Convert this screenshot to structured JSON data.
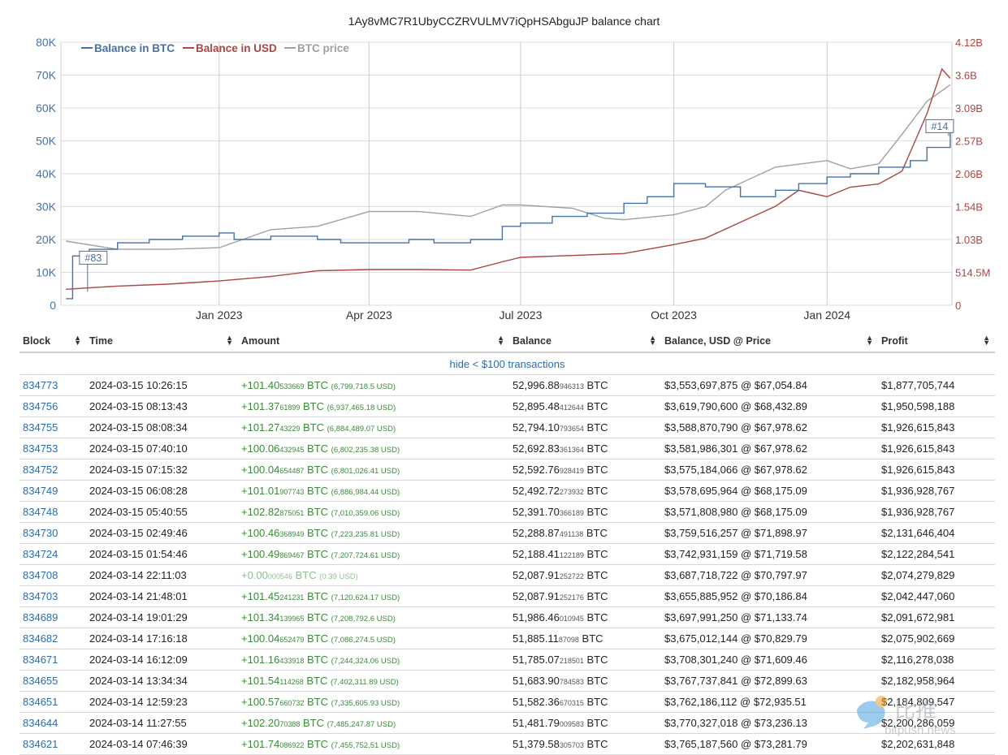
{
  "chart_data": {
    "type": "line",
    "title": "1Ay8vMC7R1UbyCCZRVULMV7iQpHSAbguJP balance chart",
    "x_ticks": [
      "Jan 2023",
      "Apr 2023",
      "Jul 2023",
      "Oct 2023",
      "Jan 2024"
    ],
    "y_left_ticks": [
      "0",
      "10K",
      "20K",
      "30K",
      "40K",
      "50K",
      "60K",
      "70K",
      "80K"
    ],
    "y_right_ticks": [
      "0",
      "514.5M",
      "1.03B",
      "1.54B",
      "2.06B",
      "2.57B",
      "3.09B",
      "3.6B",
      "4.12B"
    ],
    "ylim_left": [
      0,
      80000
    ],
    "ylim_right": [
      0,
      4120000000
    ],
    "legend_position": "top-left",
    "grid": true,
    "colors": {
      "btc": "#4572a7",
      "usd": "#aa4643",
      "price": "#a0a0a0"
    },
    "annotations": [
      {
        "label": "#83",
        "date": "2022-10-14",
        "y": 12000
      },
      {
        "label": "#14",
        "date": "2024-03-14",
        "y": 52000
      }
    ],
    "series": [
      {
        "name": "Balance in BTC",
        "axis": "left",
        "x": [
          "2022-10-01",
          "2022-10-05",
          "2022-10-15",
          "2022-11-01",
          "2022-11-20",
          "2022-12-10",
          "2023-01-01",
          "2023-01-10",
          "2023-02-01",
          "2023-03-01",
          "2023-03-15",
          "2023-04-01",
          "2023-04-25",
          "2023-05-10",
          "2023-06-01",
          "2023-06-20",
          "2023-07-01",
          "2023-07-20",
          "2023-08-10",
          "2023-09-01",
          "2023-09-15",
          "2023-10-01",
          "2023-10-20",
          "2023-11-10",
          "2023-12-01",
          "2023-12-15",
          "2024-01-01",
          "2024-01-15",
          "2024-02-01",
          "2024-02-20",
          "2024-03-01",
          "2024-03-15"
        ],
        "y": [
          2000,
          15000,
          17000,
          19000,
          20000,
          21000,
          22000,
          20000,
          21000,
          20000,
          19000,
          19000,
          20000,
          19000,
          20000,
          24000,
          25000,
          27000,
          28000,
          31000,
          33000,
          37000,
          36000,
          33000,
          35000,
          37000,
          39000,
          40000,
          42000,
          44000,
          48000,
          52997
        ]
      },
      {
        "name": "Balance in USD",
        "axis": "right",
        "x": [
          "2022-10-01",
          "2022-11-01",
          "2022-12-01",
          "2023-01-01",
          "2023-02-01",
          "2023-03-01",
          "2023-04-01",
          "2023-05-01",
          "2023-06-01",
          "2023-06-20",
          "2023-07-01",
          "2023-08-01",
          "2023-09-01",
          "2023-10-01",
          "2023-10-20",
          "2023-11-10",
          "2023-12-01",
          "2023-12-15",
          "2024-01-01",
          "2024-01-15",
          "2024-02-01",
          "2024-02-15",
          "2024-03-01",
          "2024-03-10",
          "2024-03-15"
        ],
        "y": [
          250000000,
          300000000,
          330000000,
          380000000,
          450000000,
          540000000,
          560000000,
          560000000,
          550000000,
          680000000,
          750000000,
          780000000,
          810000000,
          950000000,
          1050000000,
          1300000000,
          1550000000,
          1800000000,
          1700000000,
          1850000000,
          1900000000,
          2100000000,
          3000000000,
          3700000000,
          3553697875
        ]
      },
      {
        "name": "BTC price",
        "axis": "left",
        "x": [
          "2022-10-01",
          "2022-11-01",
          "2022-12-01",
          "2023-01-01",
          "2023-02-01",
          "2023-03-01",
          "2023-04-01",
          "2023-05-01",
          "2023-06-01",
          "2023-06-20",
          "2023-07-01",
          "2023-08-01",
          "2023-08-20",
          "2023-09-01",
          "2023-10-01",
          "2023-10-20",
          "2023-11-01",
          "2023-12-01",
          "2024-01-01",
          "2024-01-15",
          "2024-02-01",
          "2024-02-15",
          "2024-03-01",
          "2024-03-15"
        ],
        "y": [
          19500,
          17000,
          17000,
          17500,
          23000,
          24000,
          28500,
          28500,
          27000,
          30500,
          30500,
          29500,
          26500,
          26000,
          27500,
          30000,
          35000,
          42000,
          44000,
          41500,
          43000,
          52000,
          62000,
          67055
        ]
      }
    ]
  },
  "table": {
    "headers": [
      "Block",
      "Time",
      "Amount",
      "Balance",
      "Balance, USD @ Price",
      "Profit"
    ],
    "hide_link": "hide < $100 transactions",
    "unit": "BTC",
    "rows": [
      {
        "block": "834773",
        "time": "2024-03-15 10:26:15",
        "amt_main": "+101.40",
        "amt_small": "533669",
        "amt_usd": "(6,799,718.5 USD)",
        "bal_main": "52,996.88",
        "bal_small": "946313",
        "bal_usd": "$3,553,697,875 @ $67,054.84",
        "profit": "$1,877,705,744"
      },
      {
        "block": "834756",
        "time": "2024-03-15 08:13:43",
        "amt_main": "+101.37",
        "amt_small": "61899",
        "amt_usd": "(6,937,465.18 USD)",
        "bal_main": "52,895.48",
        "bal_small": "412644",
        "bal_usd": "$3,619,790,600 @ $68,432.89",
        "profit": "$1,950,598,188"
      },
      {
        "block": "834755",
        "time": "2024-03-15 08:08:34",
        "amt_main": "+101.27",
        "amt_small": "43229",
        "amt_usd": "(6,884,489.07 USD)",
        "bal_main": "52,794.10",
        "bal_small": "793654",
        "bal_usd": "$3,588,870,790 @ $67,978.62",
        "profit": "$1,926,615,843"
      },
      {
        "block": "834753",
        "time": "2024-03-15 07:40:10",
        "amt_main": "+100.06",
        "amt_small": "432945",
        "amt_usd": "(6,802,235.38 USD)",
        "bal_main": "52,692.83",
        "bal_small": "361364",
        "bal_usd": "$3,581,986,301 @ $67,978.62",
        "profit": "$1,926,615,843"
      },
      {
        "block": "834752",
        "time": "2024-03-15 07:15:32",
        "amt_main": "+100.04",
        "amt_small": "654487",
        "amt_usd": "(6,801,026.41 USD)",
        "bal_main": "52,592.76",
        "bal_small": "928419",
        "bal_usd": "$3,575,184,066 @ $67,978.62",
        "profit": "$1,926,615,843"
      },
      {
        "block": "834749",
        "time": "2024-03-15 06:08:28",
        "amt_main": "+101.01",
        "amt_small": "907743",
        "amt_usd": "(6,886,984.44 USD)",
        "bal_main": "52,492.72",
        "bal_small": "273932",
        "bal_usd": "$3,578,695,964 @ $68,175.09",
        "profit": "$1,936,928,767"
      },
      {
        "block": "834748",
        "time": "2024-03-15 05:40:55",
        "amt_main": "+102.82",
        "amt_small": "875051",
        "amt_usd": "(7,010,359.06 USD)",
        "bal_main": "52,391.70",
        "bal_small": "366189",
        "bal_usd": "$3,571,808,980 @ $68,175.09",
        "profit": "$1,936,928,767"
      },
      {
        "block": "834730",
        "time": "2024-03-15 02:49:46",
        "amt_main": "+100.46",
        "amt_small": "368949",
        "amt_usd": "(7,223,235.81 USD)",
        "bal_main": "52,288.87",
        "bal_small": "491138",
        "bal_usd": "$3,759,516,257 @ $71,898.97",
        "profit": "$2,131,646,404"
      },
      {
        "block": "834724",
        "time": "2024-03-15 01:54:46",
        "amt_main": "+100.49",
        "amt_small": "869467",
        "amt_usd": "(7,207,724.61 USD)",
        "bal_main": "52,188.41",
        "bal_small": "122189",
        "bal_usd": "$3,742,931,159 @ $71,719.58",
        "profit": "$2,122,284,541"
      },
      {
        "block": "834708",
        "time": "2024-03-14 22:11:03",
        "amt_main": "+0.00",
        "amt_small": "000546",
        "amt_usd": "(0.39 USD)",
        "bal_main": "52,087.91",
        "bal_small": "252722",
        "bal_usd": "$3,687,718,722 @ $70,797.97",
        "profit": "$2,074,279,829",
        "zero": true
      },
      {
        "block": "834703",
        "time": "2024-03-14 21:48:01",
        "amt_main": "+101.45",
        "amt_small": "241231",
        "amt_usd": "(7,120,624.17 USD)",
        "bal_main": "52,087.91",
        "bal_small": "252176",
        "bal_usd": "$3,655,885,952 @ $70,186.84",
        "profit": "$2,042,447,060"
      },
      {
        "block": "834689",
        "time": "2024-03-14 19:01:29",
        "amt_main": "+101.34",
        "amt_small": "139965",
        "amt_usd": "(7,208,792.6 USD)",
        "bal_main": "51,986.46",
        "bal_small": "010945",
        "bal_usd": "$3,697,991,250 @ $71,133.74",
        "profit": "$2,091,672,981"
      },
      {
        "block": "834682",
        "time": "2024-03-14 17:16:18",
        "amt_main": "+100.04",
        "amt_small": "652479",
        "amt_usd": "(7,086,274.5 USD)",
        "bal_main": "51,885.11",
        "bal_small": "87098",
        "bal_usd": "$3,675,012,144 @ $70,829.79",
        "profit": "$2,075,902,669"
      },
      {
        "block": "834671",
        "time": "2024-03-14 16:12:09",
        "amt_main": "+101.16",
        "amt_small": "433918",
        "amt_usd": "(7,244,324.06 USD)",
        "bal_main": "51,785.07",
        "bal_small": "218501",
        "bal_usd": "$3,708,301,240 @ $71,609.46",
        "profit": "$2,116,278,038"
      },
      {
        "block": "834655",
        "time": "2024-03-14 13:34:34",
        "amt_main": "+101.54",
        "amt_small": "114268",
        "amt_usd": "(7,402,311.89 USD)",
        "bal_main": "51,683.90",
        "bal_small": "784583",
        "bal_usd": "$3,767,737,841 @ $72,899.63",
        "profit": "$2,182,958,964"
      },
      {
        "block": "834651",
        "time": "2024-03-14 12:59:23",
        "amt_main": "+100.57",
        "amt_small": "660732",
        "amt_usd": "(7,335,605.93 USD)",
        "bal_main": "51,582.36",
        "bal_small": "670315",
        "bal_usd": "$3,762,186,112 @ $72,935.51",
        "profit": "$2,184,809,547"
      },
      {
        "block": "834644",
        "time": "2024-03-14 11:27:55",
        "amt_main": "+102.20",
        "amt_small": "70388",
        "amt_usd": "(7,485,247.87 USD)",
        "bal_main": "51,481.79",
        "bal_small": "009583",
        "bal_usd": "$3,770,327,018 @ $73,236.13",
        "profit": "$2,200,286,059"
      },
      {
        "block": "834621",
        "time": "2024-03-14 07:46:39",
        "amt_main": "+101.74",
        "amt_small": "086922",
        "amt_usd": "(7,455,752.51 USD)",
        "bal_main": "51,379.58",
        "bal_small": "305703",
        "bal_usd": "$3,765,187,560 @ $73,281.79",
        "profit": "$2,202,631,848"
      }
    ]
  },
  "watermark": {
    "text_cn": "比推",
    "text_en": "bitpush.news"
  }
}
